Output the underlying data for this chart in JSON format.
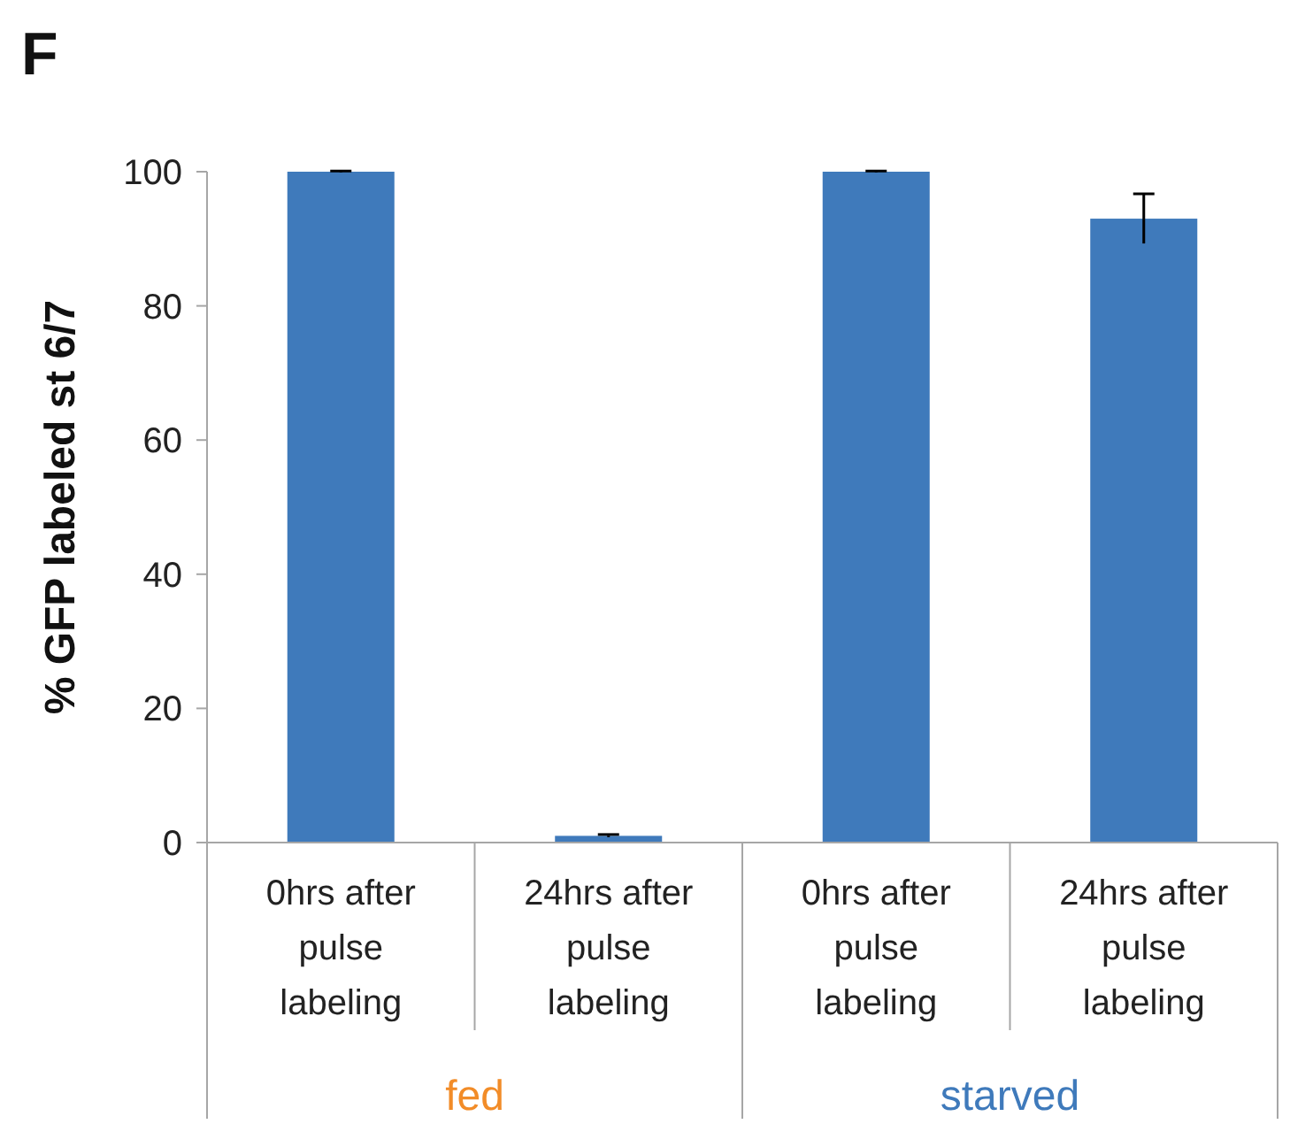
{
  "chart_data": {
    "type": "bar",
    "title": "F",
    "ylabel": "% GFP labeled st 6/7",
    "categories": [
      "0hrs after pulse labeling",
      "24hrs after pulse labeling",
      "0hrs after pulse labeling",
      "24hrs after pulse labeling"
    ],
    "values": [
      100,
      1,
      100,
      93
    ],
    "errors": [
      0.1,
      0.2,
      0.1,
      3.7
    ],
    "color": "#3f7abb",
    "ylim": [
      0,
      100
    ],
    "yticks": [
      0,
      20,
      40,
      60,
      80,
      100
    ],
    "grid": false,
    "annotations": [
      "fed",
      "starved"
    ]
  }
}
